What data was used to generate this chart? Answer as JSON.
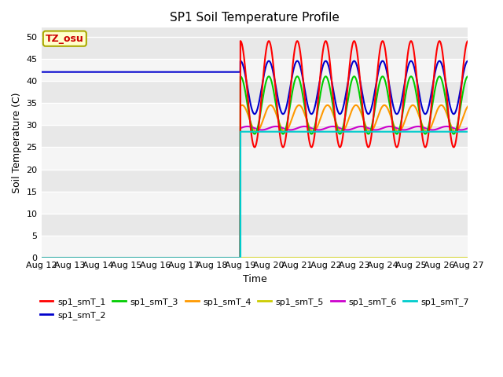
{
  "title": "SP1 Soil Temperature Profile",
  "xlabel": "Time",
  "ylabel": "Soil Temperature (C)",
  "ylim": [
    0,
    52
  ],
  "yticks": [
    0,
    5,
    10,
    15,
    20,
    25,
    30,
    35,
    40,
    45,
    50
  ],
  "x_labels": [
    "Aug 12",
    "Aug 13",
    "Aug 14",
    "Aug 15",
    "Aug 16",
    "Aug 17",
    "Aug 18",
    "Aug 19",
    "Aug 20",
    "Aug 21",
    "Aug 22",
    "Aug 23",
    "Aug 24",
    "Aug 25",
    "Aug 26",
    "Aug 27"
  ],
  "background_color": "#e8e8e8",
  "band_color_light": "#e8e8e8",
  "band_color_white": "#f5f5f5",
  "grid_line_color": "#ffffff",
  "annotation_text": "TZ_osu",
  "annotation_bg": "#ffffcc",
  "annotation_border": "#aaaa00",
  "annotation_color": "#cc0000",
  "colors": {
    "sp1_smT_1": "#ff0000",
    "sp1_smT_2": "#0000cc",
    "sp1_smT_3": "#00cc00",
    "sp1_smT_4": "#ff9900",
    "sp1_smT_5": "#cccc00",
    "sp1_smT_6": "#cc00cc",
    "sp1_smT_7": "#00cccc"
  },
  "transition_day": 7.0,
  "sp1_smT_2_flat": 42.0,
  "sp1_smT_6_mean": 29.3,
  "sp1_smT_6_amp": 0.4,
  "sp1_smT_7_mean": 28.5,
  "sp1_smT_1_amp": 12.0,
  "sp1_smT_1_mean": 37.0,
  "sp1_smT_2_osc_amp": 6.0,
  "sp1_smT_2_osc_mean": 38.5,
  "sp1_smT_3_amp": 6.5,
  "sp1_smT_3_mean": 34.5,
  "sp1_smT_4_amp": 3.0,
  "sp1_smT_4_mean": 31.5,
  "period": 1.0,
  "linewidth": 1.5,
  "title_fontsize": 11,
  "axis_label_fontsize": 9,
  "tick_fontsize": 8,
  "legend_fontsize": 8
}
